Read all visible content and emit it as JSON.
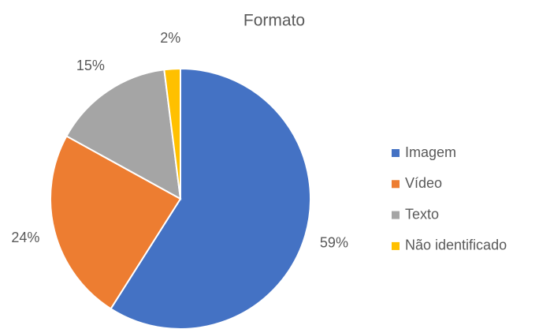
{
  "chart_data": {
    "type": "pie",
    "title": "Formato",
    "categories": [
      "Imagem",
      "Vídeo",
      "Texto",
      "Não identificado"
    ],
    "values": [
      59,
      24,
      15,
      2
    ],
    "value_labels": [
      "59%",
      "24%",
      "15%",
      "2%"
    ],
    "colors": [
      "#4472c4",
      "#ed7d31",
      "#a5a5a5",
      "#ffc000"
    ],
    "legend": "right"
  }
}
